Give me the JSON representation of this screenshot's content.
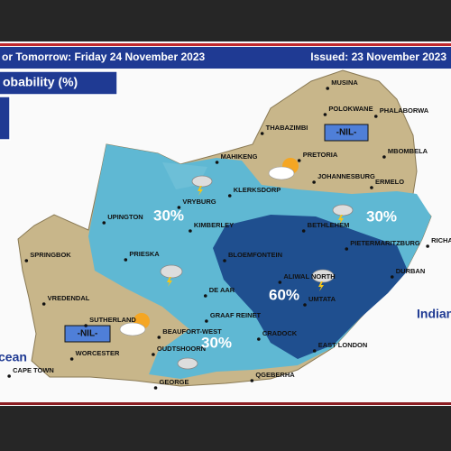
{
  "header": {
    "forecast": "or Tomorrow: Friday 24 November 2023",
    "issued": "Issued: 23 November 2023"
  },
  "legend": {
    "title": "obability (%)"
  },
  "regions": [
    {
      "label": "30%"
    },
    {
      "label": "30%"
    },
    {
      "label": "60%"
    },
    {
      "label": "30%"
    },
    {
      "label": "-NIL-"
    },
    {
      "label": "-NIL-"
    }
  ],
  "towns": [
    "MUSINA",
    "POLOKWANE",
    "PHALABORWA",
    "THABAZIMBI",
    "MBOMBELA",
    "MAHIKENG",
    "PRETORIA",
    "JOHANNESBURG",
    "ERMELO",
    "KLERKSDORP",
    "VRYBURG",
    "UPINGTON",
    "KIMBERLEY",
    "BETHLEHEM",
    "PIETERMARITZBURG",
    "RICHA",
    "SPRINGBOK",
    "PRIESKA",
    "BLOEMFONTEIN",
    "DURBAN",
    "ALIWAL NORTH",
    "DE AAR",
    "VREDENDAL",
    "UMTATA",
    "GRAAF REINET",
    "SUTHERLAND",
    "BEAUFORT-WEST",
    "CRADOCK",
    "WORCESTER",
    "OUDTSHOORN",
    "EAST LONDON",
    "CAPE TOWN",
    "GEORGE",
    "QGEBERHA"
  ],
  "oceans": [
    "Indian",
    "cean"
  ]
}
